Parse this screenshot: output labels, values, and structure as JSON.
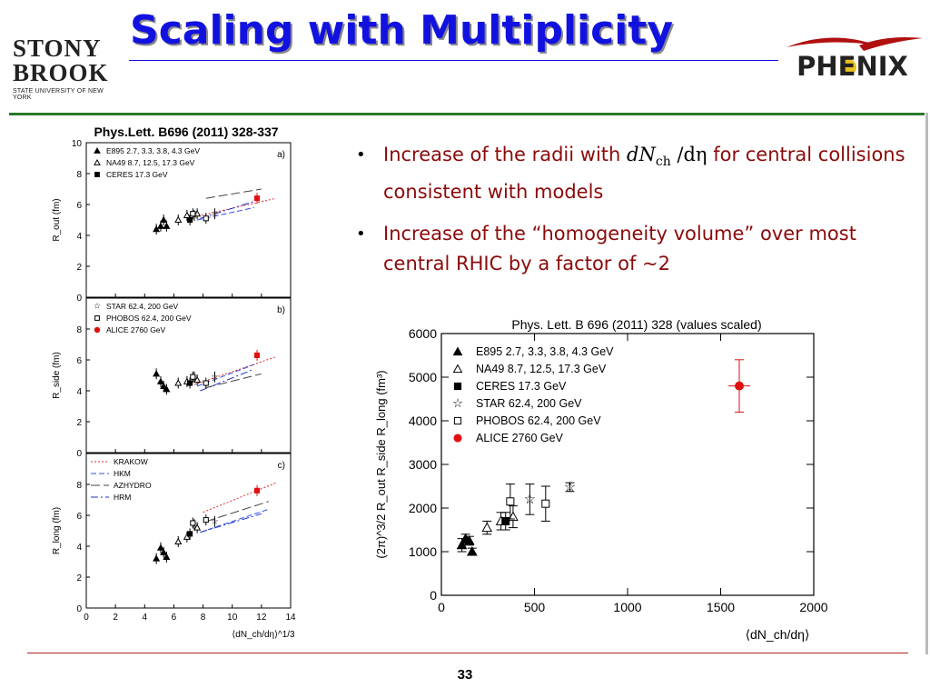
{
  "slide": {
    "title": "Scaling with Multiplicity",
    "page_number": "33",
    "logo_left": {
      "line1": "STONY",
      "line2": "BROOK",
      "line3": "STATE UNIVERSITY OF NEW YORK"
    },
    "logo_right": {
      "text": "PHENIX"
    },
    "bullets": [
      {
        "before": "Increase of the radii with",
        "math_main": "dN",
        "math_sub": "ch",
        "math_after": "/dη",
        "after": "for central collisions consistent with models"
      },
      {
        "text": "Increase of the “homogeneity volume” over most central RHIC by a factor of ~2"
      }
    ],
    "colors": {
      "title": "#1212e0",
      "bullet_text": "#8b0a0a",
      "green_rule": "#2a7a2a",
      "alice": "#e01010"
    }
  },
  "chart_data": [
    {
      "type": "scatter",
      "title": "Phys.Lett. B696 (2011) 328-337",
      "xlabel": "⟨dN_ch/dη⟩^1/3",
      "x_ticks": [
        "0",
        "2",
        "4",
        "6",
        "8",
        "10",
        "12",
        "14"
      ],
      "xlim": [
        0,
        14
      ],
      "panels": [
        {
          "label": "a)",
          "ylabel": "R_out (fm)",
          "ylim": [
            0,
            10
          ],
          "y_ticks": [
            "0",
            "2",
            "4",
            "6",
            "8",
            "10"
          ],
          "legend": [
            {
              "marker": "triangle-filled",
              "text": "E895 2.7, 3.3, 3.8, 4.3 GeV"
            },
            {
              "marker": "triangle-open",
              "text": "NA49 8.7, 12.5, 17.3 GeV"
            },
            {
              "marker": "square-filled",
              "text": "CERES 17.3 GeV"
            }
          ],
          "series": [
            {
              "name": "E895",
              "marker": "triangle-filled",
              "points": [
                [
                  4.8,
                  4.4
                ],
                [
                  5.1,
                  4.6
                ],
                [
                  5.3,
                  5.0
                ],
                [
                  5.5,
                  4.6
                ]
              ]
            },
            {
              "name": "NA49",
              "marker": "triangle-open",
              "points": [
                [
                  6.3,
                  5.0
                ],
                [
                  6.9,
                  5.3
                ],
                [
                  7.6,
                  5.4
                ]
              ]
            },
            {
              "name": "CERES",
              "marker": "square-filled",
              "points": [
                [
                  7.1,
                  5.0
                ]
              ]
            },
            {
              "name": "STAR",
              "marker": "star",
              "points": [
                [
                  7.4,
                  5.3
                ],
                [
                  8.8,
                  5.4
                ]
              ]
            },
            {
              "name": "PHOBOS",
              "marker": "square-open",
              "points": [
                [
                  7.3,
                  5.4
                ],
                [
                  8.2,
                  5.1
                ]
              ]
            },
            {
              "name": "ALICE",
              "marker": "square-red",
              "points": [
                [
                  11.7,
                  6.4
                ]
              ]
            }
          ],
          "models": [
            {
              "name": "KRAKOW",
              "x": [
                7.4,
                13.0
              ],
              "y": [
                5.2,
                6.4
              ]
            },
            {
              "name": "HKM",
              "x": [
                7.6,
                11.5
              ],
              "y": [
                5.0,
                5.8
              ]
            },
            {
              "name": "AZHYDRO",
              "x": [
                8.2,
                12.0
              ],
              "y": [
                6.4,
                7.0
              ]
            },
            {
              "name": "HRM",
              "x": [
                7.8,
                11.5
              ],
              "y": [
                5.1,
                6.2
              ]
            }
          ]
        },
        {
          "label": "b)",
          "ylabel": "R_side (fm)",
          "ylim": [
            0,
            10
          ],
          "y_ticks": [
            "0",
            "2",
            "4",
            "6",
            "8"
          ],
          "legend": [
            {
              "marker": "star",
              "text": "STAR 62.4, 200 GeV"
            },
            {
              "marker": "square-open",
              "text": "PHOBOS 62.4, 200 GeV"
            },
            {
              "marker": "circle-red",
              "text": "ALICE 2760 GeV"
            }
          ],
          "series": [
            {
              "name": "E895",
              "marker": "triangle-filled",
              "points": [
                [
                  4.8,
                  5.1
                ],
                [
                  5.1,
                  4.6
                ],
                [
                  5.3,
                  4.3
                ],
                [
                  5.5,
                  4.1
                ]
              ]
            },
            {
              "name": "NA49",
              "marker": "triangle-open",
              "points": [
                [
                  6.3,
                  4.5
                ],
                [
                  6.9,
                  4.6
                ],
                [
                  7.6,
                  4.7
                ]
              ]
            },
            {
              "name": "CERES",
              "marker": "square-filled",
              "points": [
                [
                  7.1,
                  4.5
                ]
              ]
            },
            {
              "name": "STAR",
              "marker": "star",
              "points": [
                [
                  7.4,
                  4.9
                ],
                [
                  8.8,
                  4.9
                ]
              ]
            },
            {
              "name": "PHOBOS",
              "marker": "square-open",
              "points": [
                [
                  7.3,
                  4.9
                ],
                [
                  8.2,
                  4.5
                ]
              ]
            },
            {
              "name": "ALICE",
              "marker": "square-red",
              "points": [
                [
                  11.7,
                  6.3
                ]
              ]
            }
          ],
          "models": [
            {
              "name": "KRAKOW",
              "x": [
                7.4,
                13.0
              ],
              "y": [
                4.4,
                6.2
              ]
            },
            {
              "name": "HKM",
              "x": [
                7.6,
                11.5
              ],
              "y": [
                4.3,
                5.7
              ]
            },
            {
              "name": "AZHYDRO",
              "x": [
                8.2,
                12.0
              ],
              "y": [
                4.2,
                5.1
              ]
            },
            {
              "name": "HRM",
              "x": [
                7.8,
                11.5
              ],
              "y": [
                4.0,
                5.4
              ]
            }
          ]
        },
        {
          "label": "c)",
          "ylabel": "R_long (fm)",
          "ylim": [
            0,
            10
          ],
          "y_ticks": [
            "0",
            "2",
            "4",
            "6",
            "8"
          ],
          "legend": [
            {
              "line": "dotted-red",
              "text": "KRAKOW"
            },
            {
              "line": "dashed-blue",
              "text": "HKM"
            },
            {
              "line": "longdash-black",
              "text": "AZHYDRO"
            },
            {
              "line": "dashdot-blue",
              "text": "HRM"
            }
          ],
          "series": [
            {
              "name": "E895",
              "marker": "triangle-filled",
              "points": [
                [
                  4.8,
                  3.2
                ],
                [
                  5.1,
                  3.9
                ],
                [
                  5.3,
                  3.6
                ],
                [
                  5.5,
                  3.3
                ]
              ]
            },
            {
              "name": "NA49",
              "marker": "triangle-open",
              "points": [
                [
                  6.3,
                  4.3
                ],
                [
                  6.9,
                  4.6
                ],
                [
                  7.6,
                  5.2
                ]
              ]
            },
            {
              "name": "CERES",
              "marker": "square-filled",
              "points": [
                [
                  7.1,
                  4.8
                ]
              ]
            },
            {
              "name": "STAR",
              "marker": "star",
              "points": [
                [
                  7.4,
                  5.4
                ],
                [
                  8.8,
                  5.6
                ]
              ]
            },
            {
              "name": "PHOBOS",
              "marker": "square-open",
              "points": [
                [
                  7.3,
                  5.5
                ],
                [
                  8.2,
                  5.7
                ]
              ]
            },
            {
              "name": "ALICE",
              "marker": "square-red",
              "points": [
                [
                  11.7,
                  7.6
                ]
              ]
            }
          ],
          "models": [
            {
              "name": "KRAKOW",
              "x": [
                8.0,
                13.0
              ],
              "y": [
                6.2,
                8.1
              ]
            },
            {
              "name": "HKM",
              "x": [
                7.8,
                12.5
              ],
              "y": [
                4.9,
                6.4
              ]
            },
            {
              "name": "AZHYDRO",
              "x": [
                8.2,
                12.5
              ],
              "y": [
                5.6,
                6.9
              ]
            },
            {
              "name": "HRM",
              "x": [
                7.8,
                12.0
              ],
              "y": [
                4.9,
                6.1
              ]
            }
          ]
        }
      ]
    },
    {
      "type": "scatter",
      "title": "Phys. Lett. B 696 (2011) 328 (values scaled)",
      "xlabel": "⟨dN_ch/dη⟩",
      "ylabel": "(2π)^3/2 R_out R_side R_long (fm³)",
      "xlim": [
        0,
        2000
      ],
      "ylim": [
        0,
        6000
      ],
      "x_ticks": [
        "0",
        "500",
        "1000",
        "1500",
        "2000"
      ],
      "y_ticks": [
        "0",
        "1000",
        "2000",
        "3000",
        "4000",
        "5000",
        "6000"
      ],
      "grid": false,
      "legend_placement": "top-left",
      "legend": [
        {
          "marker": "triangle-filled",
          "text": "E895 2.7, 3.3, 3.8, 4.3 GeV"
        },
        {
          "marker": "triangle-open",
          "text": "NA49 8.7, 12.5, 17.3 GeV"
        },
        {
          "marker": "square-filled",
          "text": "CERES 17.3 GeV"
        },
        {
          "marker": "star",
          "text": "STAR 62.4, 200 GeV"
        },
        {
          "marker": "square-open",
          "text": "PHOBOS 62.4, 200 GeV"
        },
        {
          "marker": "circle-red",
          "text": "ALICE 2760 GeV"
        }
      ],
      "series": [
        {
          "name": "E895",
          "marker": "triangle-filled",
          "points": [
            [
              110,
              1150,
              150
            ],
            [
              130,
              1300,
              100
            ],
            [
              150,
              1250,
              100
            ],
            [
              165,
              1000,
              80
            ]
          ]
        },
        {
          "name": "NA49",
          "marker": "triangle-open",
          "points": [
            [
              245,
              1550,
              150
            ],
            [
              320,
              1700,
              200
            ],
            [
              385,
              1800,
              250
            ]
          ]
        },
        {
          "name": "CERES",
          "marker": "square-filled",
          "points": [
            [
              345,
              1700,
              200
            ]
          ]
        },
        {
          "name": "STAR",
          "marker": "star",
          "points": [
            [
              475,
              2200,
              350
            ],
            [
              690,
              2480,
              100
            ]
          ]
        },
        {
          "name": "PHOBOS",
          "marker": "square-open",
          "points": [
            [
              370,
              2150,
              400
            ],
            [
              560,
              2100,
              400
            ]
          ]
        },
        {
          "name": "ALICE",
          "marker": "circle-red",
          "points": [
            [
              1600,
              4800,
              600
            ]
          ]
        }
      ]
    }
  ]
}
